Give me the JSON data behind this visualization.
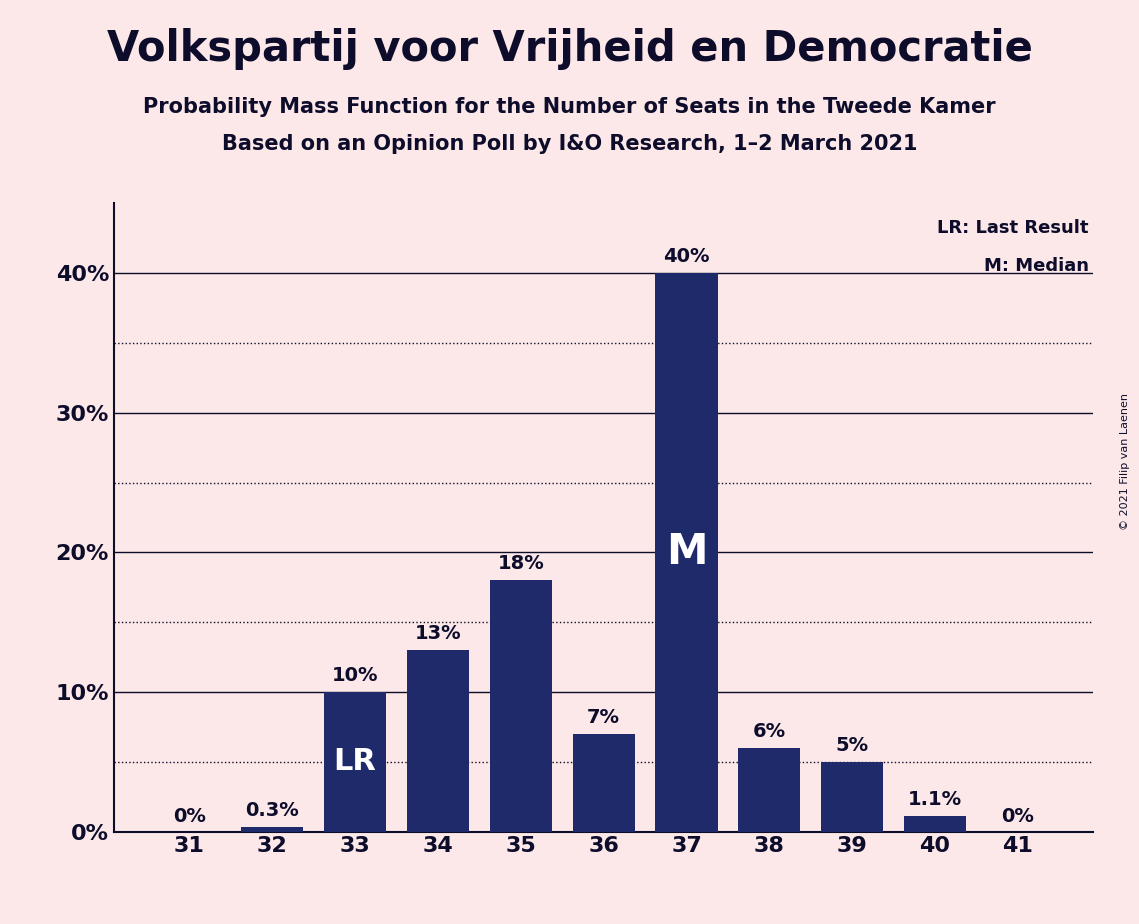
{
  "title": "Volkspartij voor Vrijheid en Democratie",
  "subtitle1": "Probability Mass Function for the Number of Seats in the Tweede Kamer",
  "subtitle2": "Based on an Opinion Poll by I&O Research, 1–2 March 2021",
  "copyright": "© 2021 Filip van Laenen",
  "categories": [
    31,
    32,
    33,
    34,
    35,
    36,
    37,
    38,
    39,
    40,
    41
  ],
  "values": [
    0.0,
    0.3,
    10.0,
    13.0,
    18.0,
    7.0,
    40.0,
    6.0,
    5.0,
    1.1,
    0.0
  ],
  "bar_labels": [
    "0%",
    "0.3%",
    "10%",
    "13%",
    "18%",
    "7%",
    "40%",
    "6%",
    "5%",
    "1.1%",
    "0%"
  ],
  "bar_color": "#1f2a6b",
  "background_color": "#fce8e8",
  "text_color": "#0d0d2b",
  "yticks": [
    0,
    10,
    20,
    30,
    40
  ],
  "ytick_labels": [
    "0%",
    "10%",
    "20%",
    "30%",
    "40%"
  ],
  "ylim": [
    0,
    45
  ],
  "lr_bar": 33,
  "median_bar": 37,
  "legend_lr": "LR: Last Result",
  "legend_m": "M: Median"
}
